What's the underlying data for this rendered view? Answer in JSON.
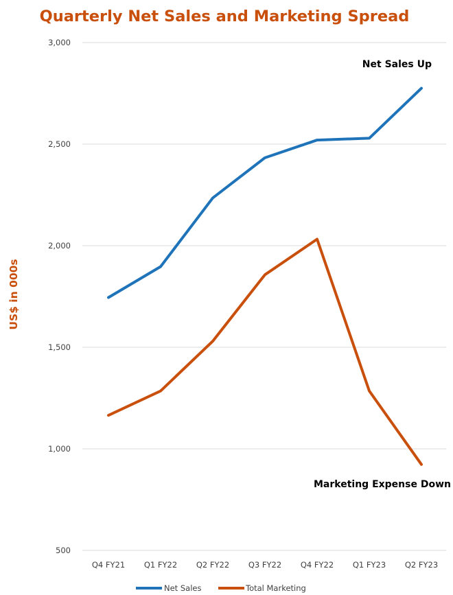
{
  "chart_data": {
    "type": "line",
    "title": "Quarterly Net Sales and Marketing Spread",
    "ylabel": "US$ in 000s",
    "xlabel": "",
    "categories": [
      "Q4 FY21",
      "Q1 FY22",
      "Q2 FY22",
      "Q3 FY22",
      "Q4 FY22",
      "Q1 FY23",
      "Q2 FY23"
    ],
    "ylim": [
      500,
      3000
    ],
    "yticks": [
      500,
      1000,
      1500,
      2000,
      2500,
      3000
    ],
    "ytick_labels": [
      "500",
      "1,000",
      "1,500",
      "2,000",
      "2,500",
      "3,000"
    ],
    "grid": true,
    "legend_position": "bottom",
    "series": [
      {
        "name": "Net Sales",
        "color": "#1f73b9",
        "values": [
          1745,
          1897,
          2235,
          2433,
          2520,
          2529,
          2775
        ]
      },
      {
        "name": "Total Marketing",
        "color": "#c94f0c",
        "values": [
          1165,
          1285,
          1530,
          1857,
          2032,
          1285,
          923
        ]
      }
    ],
    "annotations": [
      {
        "text": "Net Sales Up"
      },
      {
        "text": "Marketing Expense Down"
      }
    ],
    "title_color": "#c94f0c",
    "ylabel_color": "#c94f0c",
    "grid_color": "#d9d9d9"
  }
}
